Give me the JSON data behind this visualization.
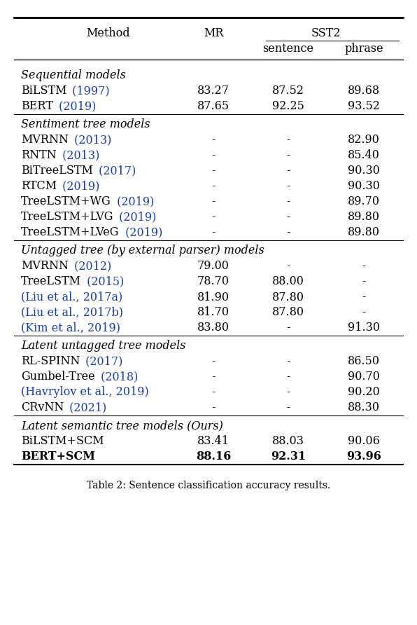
{
  "figsize": [
    5.96,
    8.92
  ],
  "dpi": 100,
  "background_color": "#ffffff",
  "year_color": "#1a3fa8",
  "text_color": "#000000",
  "font_size": 11.5,
  "caption": "Table 2: Sentence classification accuracy results.",
  "sections": [
    {
      "section_header": "Sequential models",
      "header_italic": true,
      "rows": [
        {
          "method": "BiLSTM",
          "year": "(1997)",
          "mr": "83.27",
          "sentence": "87.52",
          "phrase": "89.68",
          "bold": false,
          "cite": false
        },
        {
          "method": "BERT",
          "year": "(2019)",
          "mr": "87.65",
          "sentence": "92.25",
          "phrase": "93.52",
          "bold": false,
          "cite": false
        }
      ]
    },
    {
      "section_header": "Sentiment tree models",
      "header_italic": true,
      "rows": [
        {
          "method": "MVRNN",
          "year": "(2013)",
          "mr": "-",
          "sentence": "-",
          "phrase": "82.90",
          "bold": false,
          "cite": false
        },
        {
          "method": "RNTN",
          "year": "(2013)",
          "mr": "-",
          "sentence": "-",
          "phrase": "85.40",
          "bold": false,
          "cite": false
        },
        {
          "method": "BiTreeLSTM",
          "year": "(2017)",
          "mr": "-",
          "sentence": "-",
          "phrase": "90.30",
          "bold": false,
          "cite": false
        },
        {
          "method": "RTCM",
          "year": "(2019)",
          "mr": "-",
          "sentence": "-",
          "phrase": "90.30",
          "bold": false,
          "cite": false
        },
        {
          "method": "TreeLSTM+WG",
          "year": "(2019)",
          "mr": "-",
          "sentence": "-",
          "phrase": "89.70",
          "bold": false,
          "cite": false
        },
        {
          "method": "TreeLSTM+LVG",
          "year": "(2019)",
          "mr": "-",
          "sentence": "-",
          "phrase": "89.80",
          "bold": false,
          "cite": false
        },
        {
          "method": "TreeLSTM+LVeG",
          "year": "(2019)",
          "mr": "-",
          "sentence": "-",
          "phrase": "89.80",
          "bold": false,
          "cite": false
        }
      ]
    },
    {
      "section_header": "Untagged tree (by external parser) models",
      "header_italic": true,
      "rows": [
        {
          "method": "MVRNN",
          "year": "(2012)",
          "mr": "79.00",
          "sentence": "-",
          "phrase": "-",
          "bold": false,
          "cite": false
        },
        {
          "method": "TreeLSTM",
          "year": "(2015)",
          "mr": "78.70",
          "sentence": "88.00",
          "phrase": "-",
          "bold": false,
          "cite": false
        },
        {
          "method": "(Liu et al., 2017a)",
          "year": "",
          "mr": "81.90",
          "sentence": "87.80",
          "phrase": "-",
          "bold": false,
          "cite": true
        },
        {
          "method": "(Liu et al., 2017b)",
          "year": "",
          "mr": "81.70",
          "sentence": "87.80",
          "phrase": "-",
          "bold": false,
          "cite": true
        },
        {
          "method": "(Kim et al., 2019)",
          "year": "",
          "mr": "83.80",
          "sentence": "-",
          "phrase": "91.30",
          "bold": false,
          "cite": true
        }
      ]
    },
    {
      "section_header": "Latent untagged tree models",
      "header_italic": true,
      "rows": [
        {
          "method": "RL-SPINN",
          "year": "(2017)",
          "mr": "-",
          "sentence": "-",
          "phrase": "86.50",
          "bold": false,
          "cite": false
        },
        {
          "method": "Gumbel-Tree",
          "year": "(2018)",
          "mr": "-",
          "sentence": "-",
          "phrase": "90.70",
          "bold": false,
          "cite": false
        },
        {
          "method": "(Havrylov et al., 2019)",
          "year": "",
          "mr": "-",
          "sentence": "-",
          "phrase": "90.20",
          "bold": false,
          "cite": true
        },
        {
          "method": "CRvNN",
          "year": "(2021)",
          "mr": "-",
          "sentence": "-",
          "phrase": "88.30",
          "bold": false,
          "cite": false
        }
      ]
    },
    {
      "section_header": "Latent semantic tree models (Ours)",
      "header_italic": true,
      "rows": [
        {
          "method": "BiLSTM+SCM",
          "year": "",
          "mr": "83.41",
          "sentence": "88.03",
          "phrase": "90.06",
          "bold": false,
          "cite": false
        },
        {
          "method": "BERT+SCM",
          "year": "",
          "mr": "88.16",
          "sentence": "92.31",
          "phrase": "93.96",
          "bold": true,
          "cite": false
        }
      ]
    }
  ]
}
